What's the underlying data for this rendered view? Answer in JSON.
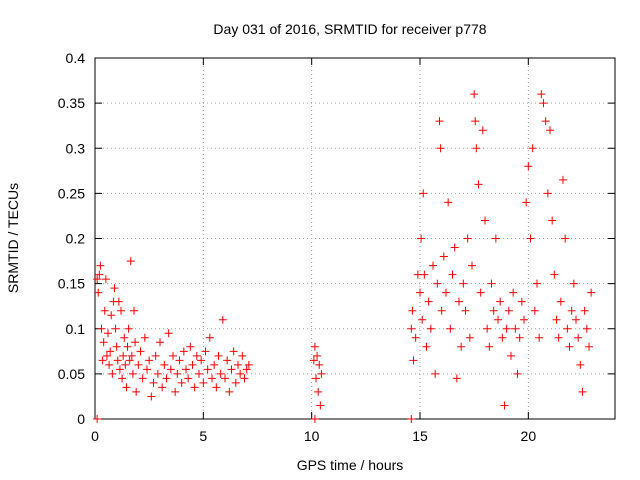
{
  "chart_data": {
    "type": "scatter",
    "title": "Day 031 of 2016, SRMTID for receiver p778",
    "xlabel": "GPS time / hours",
    "ylabel": "SRMTID / TECUs",
    "xlim": [
      0,
      24
    ],
    "ylim": [
      0,
      0.4
    ],
    "xticks": [
      0,
      5,
      10,
      15,
      20
    ],
    "xtick_labels": [
      "0",
      "5",
      "10",
      "15",
      "20"
    ],
    "yticks": [
      0,
      0.05,
      0.1,
      0.15,
      0.2,
      0.25,
      0.3,
      0.35,
      0.4
    ],
    "ytick_labels": [
      "0",
      "0.05",
      "0.1",
      "0.15",
      "0.2",
      "0.25",
      "0.3",
      "0.35",
      "0.4"
    ],
    "grid": true,
    "marker": "+",
    "color": "#ff0000",
    "series": [
      {
        "name": "SRMTID",
        "points": [
          [
            0.1,
            0.155
          ],
          [
            0.15,
            0.14
          ],
          [
            0.2,
            0.16
          ],
          [
            0.25,
            0.17
          ],
          [
            0.3,
            0.1
          ],
          [
            0.35,
            0.065
          ],
          [
            0.4,
            0.085
          ],
          [
            0.45,
            0.12
          ],
          [
            0.5,
            0.155
          ],
          [
            0.55,
            0.07
          ],
          [
            0.6,
            0.095
          ],
          [
            0.65,
            0.06
          ],
          [
            0.7,
            0.075
          ],
          [
            0.75,
            0.115
          ],
          [
            0.8,
            0.05
          ],
          [
            0.85,
            0.13
          ],
          [
            0.9,
            0.145
          ],
          [
            0.95,
            0.1
          ],
          [
            1.0,
            0.08
          ],
          [
            1.05,
            0.065
          ],
          [
            1.1,
            0.13
          ],
          [
            1.15,
            0.055
          ],
          [
            1.2,
            0.12
          ],
          [
            1.25,
            0.045
          ],
          [
            1.3,
            0.07
          ],
          [
            1.35,
            0.09
          ],
          [
            1.4,
            0.06
          ],
          [
            1.45,
            0.035
          ],
          [
            1.5,
            0.08
          ],
          [
            1.55,
            0.1
          ],
          [
            1.6,
            0.065
          ],
          [
            1.65,
            0.175
          ],
          [
            1.7,
            0.07
          ],
          [
            1.75,
            0.05
          ],
          [
            1.8,
            0.12
          ],
          [
            1.85,
            0.085
          ],
          [
            1.9,
            0.03
          ],
          [
            2.0,
            0.06
          ],
          [
            2.1,
            0.075
          ],
          [
            2.2,
            0.045
          ],
          [
            2.3,
            0.09
          ],
          [
            2.4,
            0.055
          ],
          [
            2.5,
            0.065
          ],
          [
            2.6,
            0.025
          ],
          [
            2.7,
            0.04
          ],
          [
            2.8,
            0.07
          ],
          [
            2.9,
            0.05
          ],
          [
            3.0,
            0.085
          ],
          [
            3.1,
            0.035
          ],
          [
            3.2,
            0.06
          ],
          [
            3.3,
            0.045
          ],
          [
            3.4,
            0.095
          ],
          [
            3.5,
            0.055
          ],
          [
            3.6,
            0.07
          ],
          [
            3.7,
            0.03
          ],
          [
            3.8,
            0.05
          ],
          [
            3.9,
            0.065
          ],
          [
            4.0,
            0.04
          ],
          [
            4.1,
            0.075
          ],
          [
            4.2,
            0.055
          ],
          [
            4.3,
            0.045
          ],
          [
            4.4,
            0.08
          ],
          [
            4.5,
            0.06
          ],
          [
            4.6,
            0.035
          ],
          [
            4.7,
            0.07
          ],
          [
            4.8,
            0.05
          ],
          [
            4.9,
            0.065
          ],
          [
            5.0,
            0.04
          ],
          [
            5.1,
            0.075
          ],
          [
            5.2,
            0.055
          ],
          [
            5.3,
            0.09
          ],
          [
            5.4,
            0.045
          ],
          [
            5.5,
            0.06
          ],
          [
            5.6,
            0.035
          ],
          [
            5.7,
            0.07
          ],
          [
            5.8,
            0.05
          ],
          [
            5.9,
            0.11
          ],
          [
            6.0,
            0.045
          ],
          [
            6.1,
            0.065
          ],
          [
            6.2,
            0.03
          ],
          [
            6.3,
            0.055
          ],
          [
            6.4,
            0.075
          ],
          [
            6.5,
            0.04
          ],
          [
            6.6,
            0.06
          ],
          [
            6.7,
            0.05
          ],
          [
            6.8,
            0.07
          ],
          [
            6.9,
            0.045
          ],
          [
            7.0,
            0.055
          ],
          [
            7.1,
            0.06
          ],
          [
            10.1,
            0.065
          ],
          [
            10.15,
            0.08
          ],
          [
            10.2,
            0.045
          ],
          [
            10.25,
            0.07
          ],
          [
            10.3,
            0.03
          ],
          [
            10.35,
            0.06
          ],
          [
            10.4,
            0.015
          ],
          [
            10.45,
            0.05
          ],
          [
            14.6,
            0.1
          ],
          [
            14.65,
            0.12
          ],
          [
            14.7,
            0.065
          ],
          [
            14.8,
            0.09
          ],
          [
            14.9,
            0.16
          ],
          [
            15.0,
            0.14
          ],
          [
            15.05,
            0.2
          ],
          [
            15.1,
            0.11
          ],
          [
            15.15,
            0.25
          ],
          [
            15.2,
            0.16
          ],
          [
            15.3,
            0.08
          ],
          [
            15.4,
            0.13
          ],
          [
            15.5,
            0.1
          ],
          [
            15.6,
            0.17
          ],
          [
            15.7,
            0.05
          ],
          [
            15.8,
            0.15
          ],
          [
            15.9,
            0.33
          ],
          [
            15.95,
            0.3
          ],
          [
            16.0,
            0.12
          ],
          [
            16.1,
            0.18
          ],
          [
            16.2,
            0.14
          ],
          [
            16.3,
            0.24
          ],
          [
            16.4,
            0.1
          ],
          [
            16.5,
            0.16
          ],
          [
            16.6,
            0.19
          ],
          [
            16.7,
            0.045
          ],
          [
            16.8,
            0.13
          ],
          [
            16.9,
            0.08
          ],
          [
            17.0,
            0.15
          ],
          [
            17.1,
            0.12
          ],
          [
            17.2,
            0.2
          ],
          [
            17.3,
            0.09
          ],
          [
            17.4,
            0.17
          ],
          [
            17.5,
            0.36
          ],
          [
            17.55,
            0.33
          ],
          [
            17.6,
            0.3
          ],
          [
            17.7,
            0.26
          ],
          [
            17.8,
            0.14
          ],
          [
            17.9,
            0.32
          ],
          [
            18.0,
            0.22
          ],
          [
            18.1,
            0.1
          ],
          [
            18.2,
            0.08
          ],
          [
            18.3,
            0.15
          ],
          [
            18.4,
            0.12
          ],
          [
            18.5,
            0.2
          ],
          [
            18.6,
            0.11
          ],
          [
            18.7,
            0.13
          ],
          [
            18.8,
            0.09
          ],
          [
            18.9,
            0.015
          ],
          [
            19.0,
            0.1
          ],
          [
            19.1,
            0.12
          ],
          [
            19.2,
            0.07
          ],
          [
            19.3,
            0.14
          ],
          [
            19.4,
            0.1
          ],
          [
            19.5,
            0.05
          ],
          [
            19.6,
            0.09
          ],
          [
            19.7,
            0.13
          ],
          [
            19.8,
            0.11
          ],
          [
            19.9,
            0.24
          ],
          [
            20.0,
            0.28
          ],
          [
            20.1,
            0.2
          ],
          [
            20.2,
            0.3
          ],
          [
            20.3,
            0.12
          ],
          [
            20.4,
            0.15
          ],
          [
            20.5,
            0.09
          ],
          [
            20.6,
            0.36
          ],
          [
            20.7,
            0.35
          ],
          [
            20.8,
            0.33
          ],
          [
            20.9,
            0.25
          ],
          [
            21.0,
            0.32
          ],
          [
            21.1,
            0.22
          ],
          [
            21.2,
            0.16
          ],
          [
            21.3,
            0.11
          ],
          [
            21.4,
            0.09
          ],
          [
            21.5,
            0.13
          ],
          [
            21.6,
            0.265
          ],
          [
            21.7,
            0.2
          ],
          [
            21.8,
            0.1
          ],
          [
            21.9,
            0.08
          ],
          [
            22.0,
            0.12
          ],
          [
            22.1,
            0.15
          ],
          [
            22.2,
            0.11
          ],
          [
            22.3,
            0.09
          ],
          [
            22.4,
            0.06
          ],
          [
            22.5,
            0.03
          ],
          [
            22.6,
            0.12
          ],
          [
            22.7,
            0.1
          ],
          [
            22.8,
            0.08
          ],
          [
            22.9,
            0.14
          ],
          [
            0.1,
            0.0
          ],
          [
            10.15,
            0.0
          ],
          [
            14.6,
            0.0
          ]
        ]
      }
    ]
  }
}
